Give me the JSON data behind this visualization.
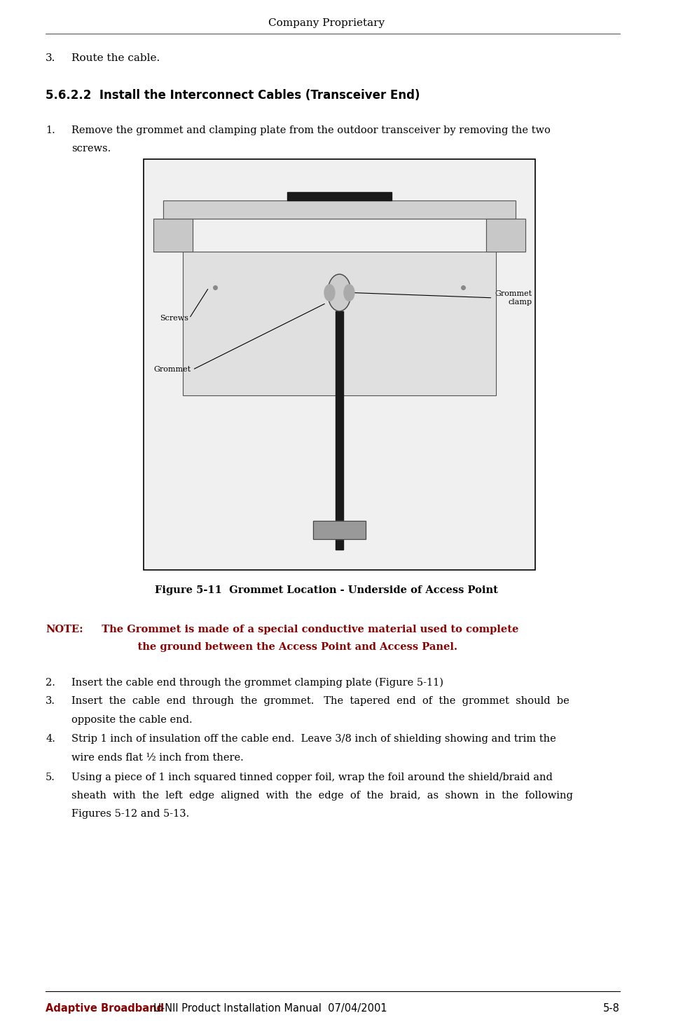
{
  "page_width": 9.75,
  "page_height": 14.65,
  "bg_color": "#ffffff",
  "header_text": "Company Proprietary",
  "header_color": "#000000",
  "header_fontsize": 11,
  "section_num": "3.",
  "section_text": "Route the cable.",
  "section_fontsize": 11,
  "subsection_title": "5.6.2.2  Install the Interconnect Cables (Transceiver End)",
  "subsection_fontsize": 12,
  "item1_text1": "Remove the grommet and clamping plate from the outdoor transceiver by removing the two",
  "item1_text2": "screws.",
  "figure_caption": "Figure 5-11  Grommet Location - Underside of Access Point",
  "note_label": "NOTE:",
  "note_text1": "  The Grommet is made of a special conductive material used to complete",
  "note_text2": "            the ground between the Access Point and Access Panel.",
  "note_color": "#8B0000",
  "item2_text": "Insert the cable end through the grommet clamping plate (Figure 5-11)",
  "item3_text1": "Insert  the  cable  end  through  the  grommet.   The  tapered  end  of  the  grommet  should  be",
  "item3_text2": "opposite the cable end.",
  "item4_text1": "Strip 1 inch of insulation off the cable end.  Leave 3/8 inch of shielding showing and trim the",
  "item4_text2": "wire ends flat ½ inch from there.",
  "item5_text1": "Using a piece of 1 inch squared tinned copper foil, wrap the foil around the shield/braid and",
  "item5_text2": "sheath  with  the  left  edge  aligned  with  the  edge  of  the  braid,  as  shown  in  the  following",
  "item5_text3": "Figures 5-12 and 5-13.",
  "footer_brand": "Adaptive Broadband",
  "footer_text": "  U-NII Product Installation Manual  07/04/2001",
  "footer_page": "5-8",
  "footer_color": "#8B0000",
  "footer_text_color": "#000000",
  "body_fontsize": 10.5,
  "caption_fontsize": 10.5,
  "note_fontsize": 10.5
}
